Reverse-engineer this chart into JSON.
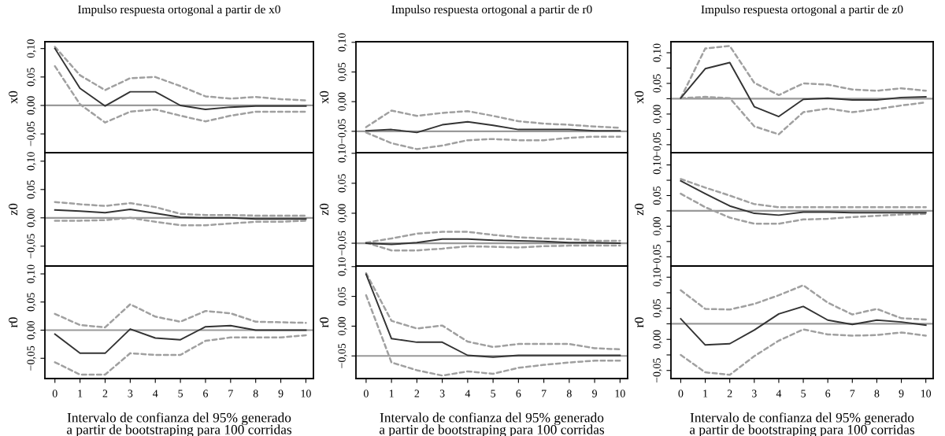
{
  "chart_data": [
    {
      "type": "line",
      "title": "Impulso respuesta ortogonal a partir de x0",
      "ylabel": "x0",
      "x": [
        0,
        1,
        2,
        3,
        4,
        5,
        6,
        7,
        8,
        9,
        10
      ],
      "xlim": [
        -0.4,
        10.3
      ],
      "ylim": [
        -0.083,
        0.112
      ],
      "yticks": [
        {
          "value": -0.05,
          "label": "−0,05"
        },
        {
          "value": 0,
          "label": "0,00"
        },
        {
          "value": 0.05,
          "label": "0,05"
        },
        {
          "value": 0.1,
          "label": "0,10"
        }
      ],
      "tick_labels": "y",
      "ref_lines": [
        {
          "axis": "y",
          "value": 0,
          "color": "#999999"
        }
      ],
      "series": [
        {
          "color": "#333333",
          "line_style": "solid",
          "values": [
            0.1,
            0.03,
            -0.001,
            0.024,
            0.024,
            0.0,
            -0.007,
            -0.003,
            -0.001,
            -0.001,
            -0.001
          ]
        },
        {
          "color": "#a0a0a0",
          "line_style": "dashed",
          "values": [
            0.103,
            0.053,
            0.027,
            0.048,
            0.05,
            0.034,
            0.016,
            0.012,
            0.015,
            0.011,
            0.009
          ]
        },
        {
          "color": "#a0a0a0",
          "line_style": "dashed",
          "values": [
            0.069,
            0.002,
            -0.03,
            -0.011,
            -0.007,
            -0.018,
            -0.028,
            -0.018,
            -0.011,
            -0.011,
            -0.011
          ]
        }
      ]
    },
    {
      "type": "line",
      "title": "Impulso respuesta ortogonal a partir de r0",
      "ylabel": "x0",
      "x": [
        0,
        1,
        2,
        3,
        4,
        5,
        6,
        7,
        8,
        9,
        10
      ],
      "xlim": [
        -0.4,
        10.3
      ],
      "ylim": [
        -0.086,
        0.101
      ],
      "yticks": [
        {
          "value": -0.05,
          "label": "−0,05"
        },
        {
          "value": 0,
          "label": "0,00"
        },
        {
          "value": 0.05,
          "label": "0,05"
        },
        {
          "value": 0.1,
          "label": "0,10"
        }
      ],
      "tick_labels": "y",
      "ref_lines": [
        {
          "axis": "y",
          "value": -0.05,
          "color": "#999999"
        }
      ],
      "series": [
        {
          "color": "#333333",
          "line_style": "solid",
          "values": [
            -0.049,
            -0.047,
            -0.052,
            -0.039,
            -0.034,
            -0.04,
            -0.047,
            -0.047,
            -0.047,
            -0.049,
            -0.049
          ]
        },
        {
          "color": "#a0a0a0",
          "line_style": "dashed",
          "values": [
            -0.043,
            -0.015,
            -0.024,
            -0.019,
            -0.016,
            -0.024,
            -0.033,
            -0.037,
            -0.039,
            -0.042,
            -0.044
          ]
        },
        {
          "color": "#a0a0a0",
          "line_style": "dashed",
          "values": [
            -0.052,
            -0.07,
            -0.08,
            -0.074,
            -0.065,
            -0.063,
            -0.065,
            -0.065,
            -0.061,
            -0.059,
            -0.059
          ]
        }
      ]
    },
    {
      "type": "line",
      "title": "Impulso respuesta ortogonal a partir de z0",
      "ylabel": "x0",
      "x": [
        0,
        1,
        2,
        3,
        4,
        5,
        6,
        7,
        8,
        9,
        10
      ],
      "xlim": [
        -0.4,
        10.3
      ],
      "ylim": [
        -0.063,
        0.118
      ],
      "yticks": [
        {
          "value": -0.05,
          "label": "−0,05"
        },
        {
          "value": -0.025,
          "label": null
        },
        {
          "value": 0,
          "label": "0,00"
        },
        {
          "value": 0.025,
          "label": null
        },
        {
          "value": 0.05,
          "label": "0,05"
        },
        {
          "value": 0.075,
          "label": null
        },
        {
          "value": 0.1,
          "label": "0,10"
        }
      ],
      "tick_labels": "y",
      "ref_lines": [
        {
          "axis": "y",
          "value": 0.025,
          "color": "#999999"
        }
      ],
      "series": [
        {
          "color": "#333333",
          "line_style": "solid",
          "values": [
            0.026,
            0.074,
            0.084,
            0.012,
            -0.004,
            0.024,
            0.026,
            0.023,
            0.023,
            0.027,
            0.028
          ]
        },
        {
          "color": "#a0a0a0",
          "line_style": "dashed",
          "values": [
            0.026,
            0.107,
            0.111,
            0.051,
            0.031,
            0.05,
            0.048,
            0.04,
            0.038,
            0.042,
            0.038
          ]
        },
        {
          "color": "#a0a0a0",
          "line_style": "dashed",
          "values": [
            0.026,
            0.028,
            0.026,
            -0.02,
            -0.033,
            0.003,
            0.009,
            0.003,
            0.008,
            0.014,
            0.019
          ]
        }
      ]
    },
    {
      "type": "line",
      "ylabel": "z0",
      "x": [
        0,
        1,
        2,
        3,
        4,
        5,
        6,
        7,
        8,
        9,
        10
      ],
      "xlim": [
        -0.4,
        10.3
      ],
      "ylim": [
        -0.085,
        0.115
      ],
      "yticks": [
        {
          "value": -0.05,
          "label": "−0,05"
        },
        {
          "value": 0,
          "label": "0,00"
        },
        {
          "value": 0.05,
          "label": "0,05"
        },
        {
          "value": 0.1,
          "label": "0,10"
        }
      ],
      "tick_labels": "y",
      "ref_lines": [
        {
          "axis": "y",
          "value": 0,
          "color": "#999999"
        }
      ],
      "series": [
        {
          "color": "#333333",
          "line_style": "solid",
          "values": [
            0.014,
            0.012,
            0.009,
            0.015,
            0.008,
            0.001,
            0.0,
            0.0,
            -0.002,
            -0.002,
            -0.002
          ]
        },
        {
          "color": "#a0a0a0",
          "line_style": "dashed",
          "values": [
            0.028,
            0.024,
            0.021,
            0.026,
            0.019,
            0.007,
            0.005,
            0.005,
            0.004,
            0.004,
            0.004
          ]
        },
        {
          "color": "#a0a0a0",
          "line_style": "dashed",
          "values": [
            -0.005,
            -0.005,
            -0.004,
            0.0,
            -0.007,
            -0.013,
            -0.013,
            -0.01,
            -0.007,
            -0.007,
            -0.005
          ]
        }
      ]
    },
    {
      "type": "line",
      "ylabel": "z0",
      "x": [
        0,
        1,
        2,
        3,
        4,
        5,
        6,
        7,
        8,
        9,
        10
      ],
      "xlim": [
        -0.4,
        10.3
      ],
      "ylim": [
        -0.088,
        0.101
      ],
      "yticks": [
        {
          "value": -0.05,
          "label": "−0,05"
        },
        {
          "value": 0,
          "label": "0,00"
        },
        {
          "value": 0.05,
          "label": "0,05"
        },
        {
          "value": 0.1,
          "label": "0,10"
        }
      ],
      "tick_labels": "y",
      "ref_lines": [
        {
          "axis": "y",
          "value": -0.05,
          "color": "#999999"
        }
      ],
      "series": [
        {
          "color": "#333333",
          "line_style": "solid",
          "values": [
            -0.05,
            -0.052,
            -0.049,
            -0.043,
            -0.043,
            -0.045,
            -0.046,
            -0.047,
            -0.049,
            -0.049,
            -0.05
          ]
        },
        {
          "color": "#a0a0a0",
          "line_style": "dashed",
          "values": [
            -0.049,
            -0.042,
            -0.034,
            -0.031,
            -0.031,
            -0.036,
            -0.04,
            -0.042,
            -0.043,
            -0.046,
            -0.046
          ]
        },
        {
          "color": "#a0a0a0",
          "line_style": "dashed",
          "values": [
            -0.049,
            -0.062,
            -0.062,
            -0.059,
            -0.055,
            -0.056,
            -0.057,
            -0.055,
            -0.054,
            -0.054,
            -0.054
          ]
        }
      ]
    },
    {
      "type": "line",
      "ylabel": "z0",
      "x": [
        0,
        1,
        2,
        3,
        4,
        5,
        6,
        7,
        8,
        9,
        10
      ],
      "xlim": [
        -0.4,
        10.3
      ],
      "ylim": [
        -0.065,
        0.12
      ],
      "yticks": [
        {
          "value": -0.05,
          "label": "−0,05"
        },
        {
          "value": -0.025,
          "label": null
        },
        {
          "value": 0,
          "label": "0,00"
        },
        {
          "value": 0.025,
          "label": null
        },
        {
          "value": 0.05,
          "label": "0,05"
        },
        {
          "value": 0.075,
          "label": null
        },
        {
          "value": 0.1,
          "label": "0,10"
        }
      ],
      "tick_labels": "y",
      "ref_lines": [
        {
          "axis": "y",
          "value": 0.025,
          "color": "#999999"
        }
      ],
      "series": [
        {
          "color": "#333333",
          "line_style": "solid",
          "values": [
            0.074,
            0.053,
            0.033,
            0.021,
            0.018,
            0.023,
            0.023,
            0.022,
            0.022,
            0.022,
            0.022
          ]
        },
        {
          "color": "#a0a0a0",
          "line_style": "dashed",
          "values": [
            0.077,
            0.063,
            0.05,
            0.036,
            0.031,
            0.031,
            0.031,
            0.031,
            0.031,
            0.031,
            0.031
          ]
        },
        {
          "color": "#a0a0a0",
          "line_style": "dashed",
          "values": [
            0.053,
            0.031,
            0.014,
            0.004,
            0.004,
            0.011,
            0.012,
            0.015,
            0.017,
            0.019,
            0.02
          ]
        }
      ]
    },
    {
      "type": "line",
      "ylabel": "r0",
      "xlabel": "Intervalo de confianza del 95% generado\na partir de bootstraping para 100 corridas",
      "x": [
        0,
        1,
        2,
        3,
        4,
        5,
        6,
        7,
        8,
        9,
        10
      ],
      "xlim": [
        -0.4,
        10.3
      ],
      "xticks": [
        0,
        1,
        2,
        3,
        4,
        5,
        6,
        7,
        8,
        9,
        10
      ],
      "ylim": [
        -0.086,
        0.114
      ],
      "yticks": [
        {
          "value": -0.05,
          "label": "−0,05"
        },
        {
          "value": 0,
          "label": "0,00"
        },
        {
          "value": 0.05,
          "label": "0,05"
        },
        {
          "value": 0.1,
          "label": "0,10"
        }
      ],
      "ref_lines": [
        {
          "axis": "y",
          "value": 0,
          "color": "#999999"
        }
      ],
      "series": [
        {
          "color": "#333333",
          "line_style": "solid",
          "values": [
            -0.007,
            -0.041,
            -0.041,
            0.002,
            -0.014,
            -0.017,
            0.006,
            0.008,
            0.0,
            0.0,
            0.0
          ]
        },
        {
          "color": "#a0a0a0",
          "line_style": "dashed",
          "values": [
            0.029,
            0.009,
            0.005,
            0.046,
            0.024,
            0.015,
            0.034,
            0.03,
            0.015,
            0.014,
            0.013
          ]
        },
        {
          "color": "#a0a0a0",
          "line_style": "dashed",
          "values": [
            -0.057,
            -0.079,
            -0.079,
            -0.041,
            -0.044,
            -0.044,
            -0.019,
            -0.013,
            -0.013,
            -0.013,
            -0.009
          ]
        }
      ]
    },
    {
      "type": "line",
      "ylabel": "r0",
      "xlabel": "Intervalo de confianza del 95% generado\na partir de bootstraping para 100 corridas",
      "x": [
        0,
        1,
        2,
        3,
        4,
        5,
        6,
        7,
        8,
        9,
        10
      ],
      "xlim": [
        -0.4,
        10.3
      ],
      "xticks": [
        0,
        1,
        2,
        3,
        4,
        5,
        6,
        7,
        8,
        9,
        10
      ],
      "ylim": [
        -0.088,
        0.101
      ],
      "yticks": [
        {
          "value": -0.05,
          "label": "−0,05"
        },
        {
          "value": 0,
          "label": "0,00"
        },
        {
          "value": 0.05,
          "label": "0,05"
        },
        {
          "value": 0.1,
          "label": "0,10"
        }
      ],
      "ref_lines": [
        {
          "axis": "y",
          "value": -0.05,
          "color": "#999999"
        }
      ],
      "series": [
        {
          "color": "#333333",
          "line_style": "solid",
          "values": [
            0.087,
            -0.021,
            -0.027,
            -0.027,
            -0.049,
            -0.052,
            -0.049,
            -0.049,
            -0.049,
            -0.049,
            -0.049
          ]
        },
        {
          "color": "#a0a0a0",
          "line_style": "dashed",
          "values": [
            0.089,
            0.009,
            -0.004,
            0.001,
            -0.026,
            -0.035,
            -0.03,
            -0.03,
            -0.03,
            -0.037,
            -0.039
          ]
        },
        {
          "color": "#a0a0a0",
          "line_style": "dashed",
          "values": [
            0.052,
            -0.061,
            -0.074,
            -0.083,
            -0.076,
            -0.08,
            -0.07,
            -0.065,
            -0.061,
            -0.058,
            -0.058
          ]
        }
      ]
    },
    {
      "type": "line",
      "ylabel": "r0",
      "xlabel": "Intervalo de confianza del 95% generado\na partir de bootstraping para 100 corridas",
      "x": [
        0,
        1,
        2,
        3,
        4,
        5,
        6,
        7,
        8,
        9,
        10
      ],
      "xlim": [
        -0.4,
        10.3
      ],
      "xticks": [
        0,
        1,
        2,
        3,
        4,
        5,
        6,
        7,
        8,
        9,
        10
      ],
      "ylim": [
        -0.063,
        0.118
      ],
      "yticks": [
        {
          "value": -0.05,
          "label": "−0,05"
        },
        {
          "value": -0.025,
          "label": null
        },
        {
          "value": 0,
          "label": "0,00"
        },
        {
          "value": 0.025,
          "label": null
        },
        {
          "value": 0.05,
          "label": "0,05"
        },
        {
          "value": 0.075,
          "label": null
        },
        {
          "value": 0.1,
          "label": "0,10"
        }
      ],
      "ref_lines": [
        {
          "axis": "y",
          "value": 0.025,
          "color": "#999999"
        }
      ],
      "series": [
        {
          "color": "#333333",
          "line_style": "solid",
          "values": [
            0.033,
            -0.009,
            -0.007,
            0.015,
            0.041,
            0.053,
            0.031,
            0.024,
            0.031,
            0.028,
            0.023
          ]
        },
        {
          "color": "#a0a0a0",
          "line_style": "dashed",
          "values": [
            0.079,
            0.049,
            0.048,
            0.057,
            0.071,
            0.087,
            0.059,
            0.04,
            0.049,
            0.034,
            0.032
          ]
        },
        {
          "color": "#a0a0a0",
          "line_style": "dashed",
          "values": [
            -0.025,
            -0.053,
            -0.057,
            -0.027,
            -0.002,
            0.016,
            0.008,
            0.006,
            0.007,
            0.011,
            0.006
          ]
        }
      ]
    }
  ]
}
